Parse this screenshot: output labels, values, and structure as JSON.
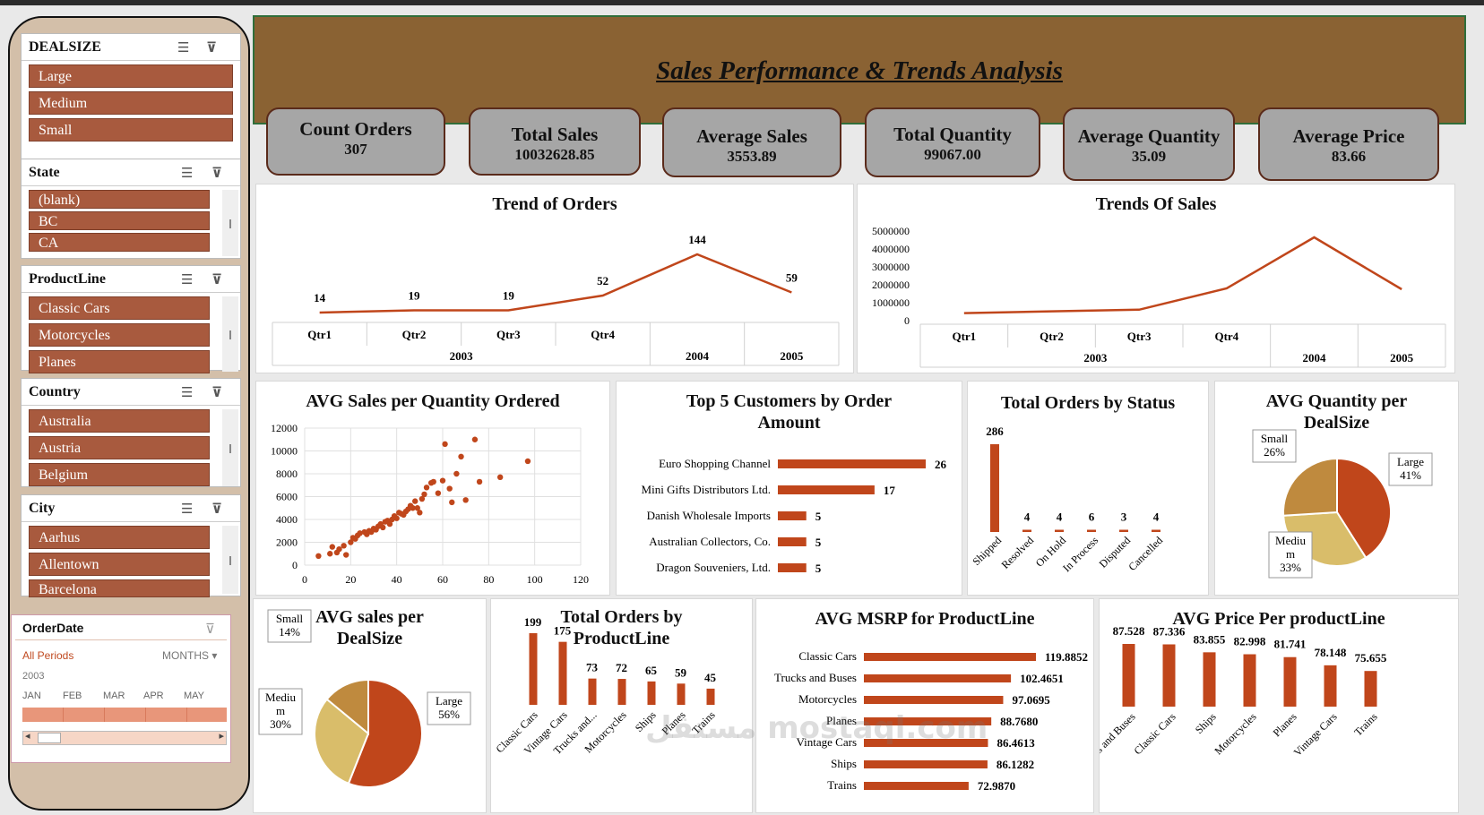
{
  "title": "Sales Performance & Trends Analysis",
  "colors": {
    "accent": "#c0461b",
    "banner": "#8a6233",
    "sidebar": "#d3bfa9",
    "slicer_item": "#a85a3e",
    "kpi": "#a6a6a6"
  },
  "slicers": {
    "dealsize": {
      "title": "DEALSIZE",
      "items": [
        "Large",
        "Medium",
        "Small"
      ]
    },
    "state": {
      "title": "State",
      "items": [
        "(blank)",
        "BC",
        "CA"
      ]
    },
    "productline": {
      "title": "ProductLine",
      "items": [
        "Classic Cars",
        "Motorcycles",
        "Planes"
      ]
    },
    "country": {
      "title": "Country",
      "items": [
        "Australia",
        "Austria",
        "Belgium"
      ]
    },
    "city": {
      "title": "City",
      "items": [
        "Aarhus",
        "Allentown",
        "Barcelona"
      ]
    }
  },
  "timeline": {
    "title": "OrderDate",
    "periods": "All Periods",
    "granularity": "MONTHS",
    "year": "2003",
    "months": [
      "JAN",
      "FEB",
      "MAR",
      "APR",
      "MAY"
    ]
  },
  "kpis": [
    {
      "label": "Count Orders",
      "value": "307"
    },
    {
      "label": "Total Sales",
      "value": "10032628.85"
    },
    {
      "label": "Average Sales",
      "value": "3553.89"
    },
    {
      "label": "Total Quantity",
      "value": "99067.00"
    },
    {
      "label": "Average Quantity",
      "value": "35.09"
    },
    {
      "label": "Average Price",
      "value": "83.66"
    }
  ],
  "chart_data": [
    {
      "id": "trend_orders",
      "type": "line",
      "title": "Trend of Orders",
      "categories": [
        "Qtr1",
        "Qtr2",
        "Qtr3",
        "Qtr4",
        "",
        ""
      ],
      "groups": [
        "2003",
        "2004",
        "2005"
      ],
      "values": [
        14,
        19,
        19,
        52,
        144,
        59
      ]
    },
    {
      "id": "trend_sales",
      "type": "line",
      "title": "Trends Of Sales",
      "categories": [
        "Qtr1",
        "Qtr2",
        "Qtr3",
        "Qtr4",
        "",
        ""
      ],
      "groups": [
        "2003",
        "2004",
        "2005"
      ],
      "yticks": [
        "5000000",
        "4000000",
        "3000000",
        "2000000",
        "1000000",
        "0"
      ],
      "ylim": [
        0,
        5000000
      ],
      "values": [
        420000,
        520000,
        610000,
        1800000,
        4650000,
        1750000
      ]
    },
    {
      "id": "avg_sales_qty",
      "type": "scatter",
      "title": "AVG Sales per Quantity Ordered",
      "xlim": [
        0,
        120
      ],
      "ylim": [
        0,
        12000
      ],
      "xticks": [
        "0",
        "20",
        "40",
        "60",
        "80",
        "100",
        "120"
      ],
      "yticks": [
        "12000",
        "10000",
        "8000",
        "6000",
        "4000",
        "2000",
        "0"
      ],
      "points": [
        [
          6,
          800
        ],
        [
          11,
          1000
        ],
        [
          12,
          1600
        ],
        [
          14,
          1100
        ],
        [
          15,
          1400
        ],
        [
          17,
          1700
        ],
        [
          18,
          900
        ],
        [
          20,
          2000
        ],
        [
          21,
          2400
        ],
        [
          22,
          2300
        ],
        [
          23,
          2600
        ],
        [
          24,
          2800
        ],
        [
          26,
          2900
        ],
        [
          27,
          2700
        ],
        [
          28,
          3000
        ],
        [
          29,
          2900
        ],
        [
          30,
          3200
        ],
        [
          31,
          3100
        ],
        [
          32,
          3400
        ],
        [
          33,
          3600
        ],
        [
          34,
          3300
        ],
        [
          35,
          3800
        ],
        [
          36,
          3900
        ],
        [
          37,
          3600
        ],
        [
          38,
          4000
        ],
        [
          39,
          4300
        ],
        [
          40,
          4100
        ],
        [
          41,
          4600
        ],
        [
          42,
          4500
        ],
        [
          43,
          4400
        ],
        [
          44,
          4700
        ],
        [
          45,
          4900
        ],
        [
          46,
          5200
        ],
        [
          47,
          5000
        ],
        [
          48,
          5600
        ],
        [
          49,
          5000
        ],
        [
          50,
          4600
        ],
        [
          51,
          5800
        ],
        [
          52,
          6200
        ],
        [
          53,
          6800
        ],
        [
          55,
          7200
        ],
        [
          56,
          7300
        ],
        [
          58,
          6300
        ],
        [
          60,
          7400
        ],
        [
          61,
          10600
        ],
        [
          63,
          6700
        ],
        [
          64,
          5500
        ],
        [
          66,
          8000
        ],
        [
          68,
          9500
        ],
        [
          70,
          5700
        ],
        [
          74,
          11000
        ],
        [
          76,
          7300
        ],
        [
          85,
          7700
        ],
        [
          97,
          9100
        ]
      ]
    },
    {
      "id": "top_customers",
      "type": "bar",
      "title": "Top 5 Customers by Order Amount",
      "categories": [
        "Euro Shopping Channel",
        "Mini Gifts Distributors Ltd.",
        "Danish Wholesale Imports",
        "Australian Collectors, Co.",
        "Dragon Souveniers, Ltd."
      ],
      "values": [
        26,
        17,
        5,
        5,
        5
      ]
    },
    {
      "id": "orders_status",
      "type": "bar",
      "title": "Total Orders by Status",
      "categories": [
        "Shipped",
        "Resolved",
        "On Hold",
        "In Process",
        "Disputed",
        "Cancelled"
      ],
      "values": [
        286,
        4,
        4,
        6,
        3,
        4
      ]
    },
    {
      "id": "avg_qty_dealsize",
      "type": "pie",
      "title": "AVG Quantity per DealSize",
      "categories": [
        "Large",
        "Medium",
        "Small"
      ],
      "labels": [
        "Large\n41%",
        "Mediu\nm\n33%",
        "Small\n26%"
      ],
      "values": [
        41,
        33,
        26
      ]
    },
    {
      "id": "avg_sales_dealsize",
      "type": "pie",
      "title": "AVG sales per DealSize",
      "categories": [
        "Large",
        "Medium",
        "Small"
      ],
      "labels": [
        "Large\n56%",
        "Mediu\nm\n30%",
        "Small\n14%"
      ],
      "values": [
        56,
        30,
        14
      ]
    },
    {
      "id": "orders_productline",
      "type": "bar",
      "title": "Total Orders by ProductLine",
      "categories": [
        "Classic Cars",
        "Vintage Cars",
        "Trucks and...",
        "Motorcycles",
        "Ships",
        "Planes",
        "Trains"
      ],
      "values": [
        199,
        175,
        73,
        72,
        65,
        59,
        45
      ]
    },
    {
      "id": "avg_msrp",
      "type": "bar",
      "title": "AVG MSRP for ProductLine",
      "categories": [
        "Classic Cars",
        "Trucks and Buses",
        "Motorcycles",
        "Planes",
        "Vintage Cars",
        "Ships",
        "Trains"
      ],
      "values": [
        119.8852,
        102.4651,
        97.0695,
        88.768,
        86.4613,
        86.1282,
        72.987
      ],
      "labels": [
        "119.8852",
        "102.4651",
        "97.0695",
        "88.7680",
        "86.4613",
        "86.1282",
        "72.9870"
      ]
    },
    {
      "id": "avg_price",
      "type": "bar",
      "title": "AVG Price Per productLine",
      "categories": [
        "Trucks and Buses",
        "Classic Cars",
        "Ships",
        "Motorcycles",
        "Planes",
        "Vintage Cars",
        "Trains"
      ],
      "values": [
        87.528,
        87.336,
        83.855,
        82.998,
        81.741,
        78.148,
        75.655
      ]
    }
  ],
  "watermark": "مستقل mostaql.com"
}
